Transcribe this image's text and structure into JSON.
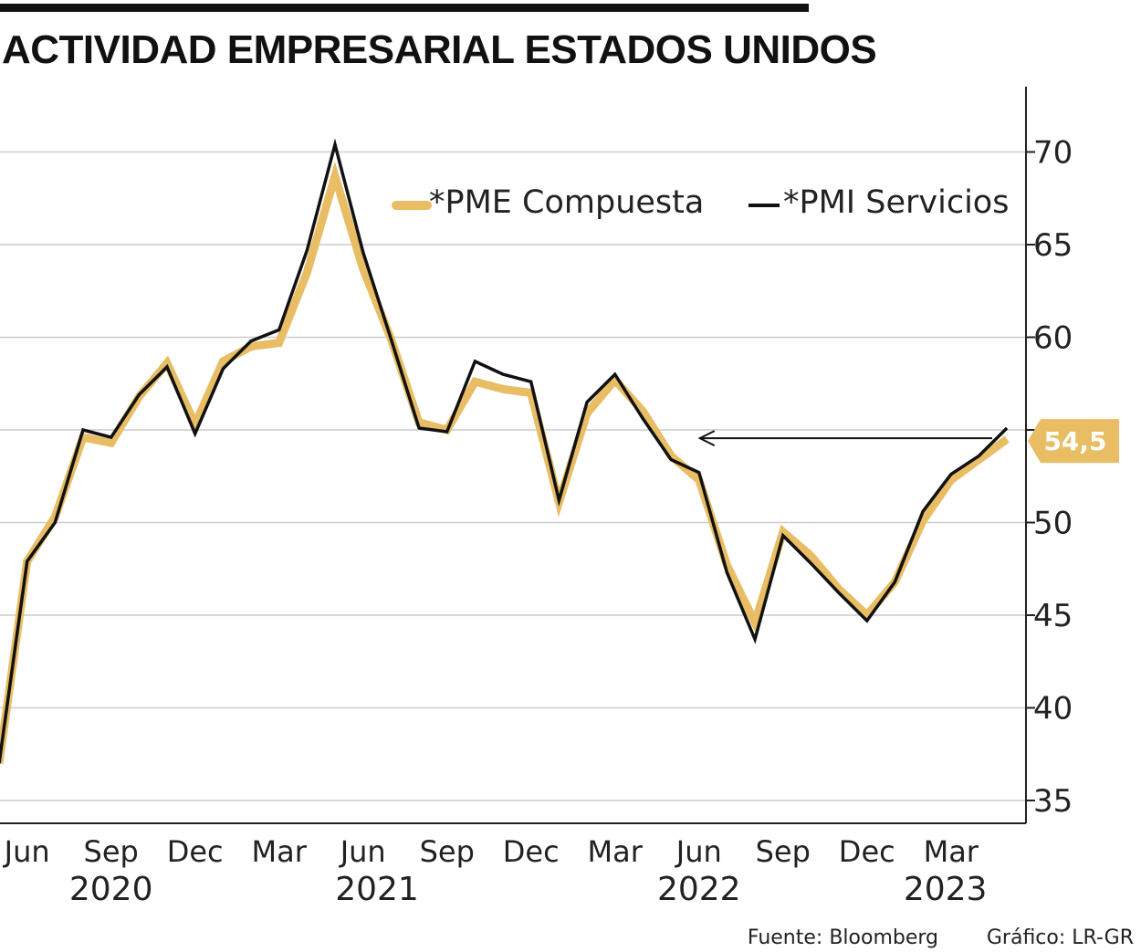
{
  "title": "ACTIVIDAD EMPRESARIAL ESTADOS UNIDOS",
  "source": "Fuente: Bloomberg",
  "credit": "Gráfico: LR-GR",
  "colors": {
    "composite": "#e8bd64",
    "services": "#111111",
    "grid": "#cccccc",
    "badge": "#e8bd64"
  },
  "chart_data": {
    "type": "line",
    "title": "ACTIVIDAD EMPRESARIAL ESTADOS UNIDOS",
    "xlabel": "",
    "ylabel": "",
    "ylim": [
      33,
      73
    ],
    "yticks": [
      35,
      40,
      45,
      50,
      55,
      60,
      65,
      70
    ],
    "ytick_labels": [
      "35",
      "40",
      "45",
      "50",
      "",
      "60",
      "65",
      "70"
    ],
    "months": [
      "May 2020",
      "Jun 2020",
      "Jul 2020",
      "Aug 2020",
      "Sep 2020",
      "Oct 2020",
      "Nov 2020",
      "Dec 2020",
      "Jan 2021",
      "Feb 2021",
      "Mar 2021",
      "Apr 2021",
      "May 2021",
      "Jun 2021",
      "Jul 2021",
      "Aug 2021",
      "Sep 2021",
      "Oct 2021",
      "Nov 2021",
      "Dec 2021",
      "Jan 2022",
      "Feb 2022",
      "Mar 2022",
      "Apr 2022",
      "May 2022",
      "Jun 2022",
      "Jul 2022",
      "Aug 2022",
      "Sep 2022",
      "Oct 2022",
      "Nov 2022",
      "Dec 2022",
      "Jan 2023",
      "Feb 2023",
      "Mar 2023",
      "Apr 2023",
      "May 2023"
    ],
    "x_ticks": [
      {
        "index": 1,
        "label": "Jun"
      },
      {
        "index": 4,
        "label": "Sep"
      },
      {
        "index": 7,
        "label": "Dec"
      },
      {
        "index": 10,
        "label": "Mar"
      },
      {
        "index": 13,
        "label": "Jun"
      },
      {
        "index": 16,
        "label": "Sep"
      },
      {
        "index": 19,
        "label": "Dec"
      },
      {
        "index": 22,
        "label": "Mar"
      },
      {
        "index": 25,
        "label": "Jun"
      },
      {
        "index": 28,
        "label": "Sep"
      },
      {
        "index": 31,
        "label": "Dec"
      },
      {
        "index": 34,
        "label": "Mar"
      }
    ],
    "years": [
      {
        "index": 4,
        "label": "2020"
      },
      {
        "index": 13.5,
        "label": "2021"
      },
      {
        "index": 25,
        "label": "2022"
      },
      {
        "index": 33.8,
        "label": "2023"
      }
    ],
    "series": [
      {
        "name": "*PME Compuesta",
        "color": "#e8bd64",
        "values": [
          37.0,
          47.9,
          50.3,
          54.6,
          54.3,
          56.8,
          58.6,
          55.3,
          58.7,
          59.5,
          59.7,
          63.5,
          68.7,
          63.7,
          59.9,
          55.4,
          55.0,
          57.6,
          57.2,
          57.0,
          51.1,
          55.9,
          57.7,
          56.0,
          53.6,
          52.3,
          47.7,
          44.6,
          49.5,
          48.2,
          46.4,
          45.0,
          46.8,
          50.1,
          52.3,
          53.4,
          54.5
        ]
      },
      {
        "name": "*PMI Servicios",
        "color": "#111111",
        "values": [
          37.0,
          47.9,
          50.0,
          55.0,
          54.6,
          56.9,
          58.4,
          54.8,
          58.3,
          59.8,
          60.4,
          64.7,
          70.4,
          64.6,
          59.9,
          55.1,
          54.9,
          58.7,
          58.0,
          57.6,
          51.2,
          56.5,
          58.0,
          55.6,
          53.4,
          52.7,
          47.3,
          43.7,
          49.3,
          47.8,
          46.2,
          44.7,
          46.8,
          50.6,
          52.6,
          53.6,
          55.1
        ]
      }
    ],
    "legend": {
      "position": "top-right",
      "entries": [
        "*PME Compuesta",
        "*PMI Servicios"
      ]
    },
    "annotation": {
      "label": "54,5",
      "value": 54.5,
      "arrow_from_index": 36,
      "arrow_to_index": 25,
      "arrow_value": 54.5
    },
    "grid": true
  }
}
